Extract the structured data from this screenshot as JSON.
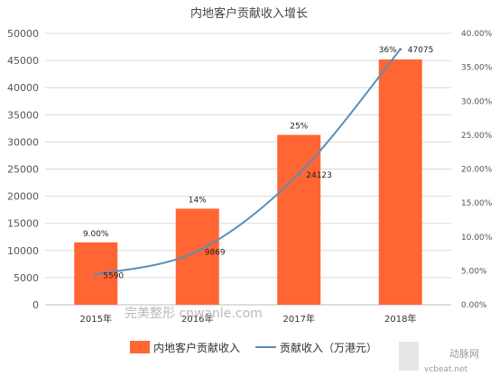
{
  "chart_data": {
    "type": "bar+line",
    "title": "内地客户贡献收入增长",
    "categories": [
      "2015年",
      "2016年",
      "2017年",
      "2018年"
    ],
    "bar_series": {
      "name": "内地客户贡献收入",
      "values": [
        11500,
        17700,
        31300,
        45200
      ],
      "data_labels": [
        "9.00%",
        "14%",
        "25%",
        "36%"
      ],
      "color": "#FF6633"
    },
    "line_series": {
      "name": "贡献收入（万港元）",
      "values": [
        5590,
        9869,
        24123,
        47075
      ],
      "data_labels": [
        "5590",
        "9869",
        "24123",
        "47075"
      ],
      "color": "#5B8DB8"
    },
    "y_left": {
      "ylim": [
        0,
        50000
      ],
      "ticks": [
        "0",
        "5000",
        "10000",
        "15000",
        "20000",
        "25000",
        "30000",
        "35000",
        "40000",
        "45000",
        "50000"
      ]
    },
    "y_right": {
      "ylim": [
        0,
        40
      ],
      "ticks": [
        "0.00%",
        "5.00%",
        "10.00%",
        "15.00%",
        "20.00%",
        "25.00%",
        "30.00%",
        "35.00%",
        "40.00%"
      ]
    },
    "grid": true,
    "legend_position": "bottom"
  },
  "watermarks": {
    "center": "完美整形 cnwanle.com",
    "corner": "动脉网",
    "corner_sub": "vcbeat.net"
  }
}
